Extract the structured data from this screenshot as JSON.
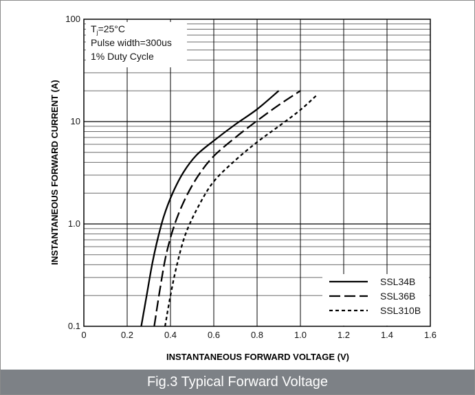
{
  "caption": "Fig.3 Typical Forward Voltage",
  "conditions": {
    "temp_prefix": "T",
    "temp_subscript": "j",
    "temp_value": "=25°C",
    "pulse": "Pulse width=300us",
    "duty": "1% Duty Cycle"
  },
  "chart_data": {
    "type": "line",
    "title": "",
    "xlabel": "INSTANTANEOUS FORWARD VOLTAGE (V)",
    "ylabel": "INSTANTANEOUS FORWARD CURRENT (A)",
    "xlim": [
      0,
      1.6
    ],
    "ylim": [
      0.1,
      100
    ],
    "yscale": "log",
    "grid": true,
    "legend_position": "bottom-right",
    "x_ticks": [
      "0",
      "0.2",
      "0.4",
      "0.6",
      "0.8",
      "1.0",
      "1.2",
      "1.4",
      "1.6"
    ],
    "y_ticks": [
      "0.1",
      "1.0",
      "10",
      "100"
    ],
    "series": [
      {
        "name": "SSL34B",
        "line_style": "solid",
        "points": [
          [
            0.265,
            0.1
          ],
          [
            0.29,
            0.2
          ],
          [
            0.315,
            0.4
          ],
          [
            0.34,
            0.7
          ],
          [
            0.37,
            1.2
          ],
          [
            0.41,
            2.0
          ],
          [
            0.46,
            3.2
          ],
          [
            0.52,
            4.7
          ],
          [
            0.6,
            6.5
          ],
          [
            0.7,
            9.4
          ],
          [
            0.8,
            13.2
          ],
          [
            0.9,
            20.0
          ]
        ]
      },
      {
        "name": "SSL36B",
        "line_style": "long-dash",
        "points": [
          [
            0.325,
            0.1
          ],
          [
            0.35,
            0.22
          ],
          [
            0.38,
            0.5
          ],
          [
            0.42,
            1.0
          ],
          [
            0.47,
            1.8
          ],
          [
            0.53,
            3.0
          ],
          [
            0.6,
            4.6
          ],
          [
            0.7,
            7.0
          ],
          [
            0.8,
            10.2
          ],
          [
            0.9,
            14.5
          ],
          [
            1.0,
            20.0
          ]
        ]
      },
      {
        "name": "SSL310B",
        "line_style": "short-dash",
        "points": [
          [
            0.375,
            0.1
          ],
          [
            0.4,
            0.2
          ],
          [
            0.43,
            0.4
          ],
          [
            0.47,
            0.8
          ],
          [
            0.53,
            1.5
          ],
          [
            0.6,
            2.6
          ],
          [
            0.7,
            4.2
          ],
          [
            0.8,
            6.3
          ],
          [
            0.9,
            9.0
          ],
          [
            1.0,
            13.0
          ],
          [
            1.08,
            18.5
          ]
        ]
      }
    ]
  }
}
